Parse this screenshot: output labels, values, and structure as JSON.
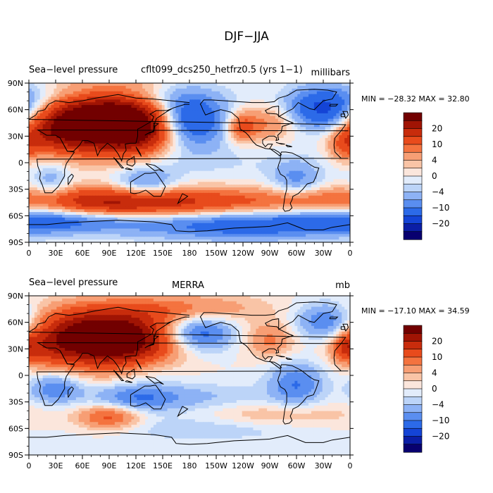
{
  "figure_title": "DJF−JJA",
  "colorbar": {
    "tick_labels": [
      "20",
      "10",
      "4",
      "0",
      "−4",
      "−10",
      "−20"
    ],
    "levels": [
      -25,
      -20,
      -15,
      -10,
      -7,
      -4,
      -2,
      0,
      2,
      4,
      7,
      10,
      15,
      20,
      25
    ],
    "colors": [
      "#08006f",
      "#0b1ea6",
      "#1444d6",
      "#2c6ae8",
      "#5a8ef0",
      "#8db2f5",
      "#bcd4f8",
      "#e2ecfb",
      "#fbe6dc",
      "#f9c4a6",
      "#f79e74",
      "#f4733f",
      "#e84b1c",
      "#c82c0c",
      "#a01404",
      "#720000"
    ]
  },
  "chart_data": [
    {
      "type": "heatmap",
      "panel_label": "Sea−level pressure",
      "title": "cflt099_dcs250_hetfrz0.5 (yrs 1−1)",
      "units": "millibars",
      "stats": "MIN = −28.32  MAX =  32.80",
      "min": -28.32,
      "max": 32.8,
      "x_ticks": [
        "0",
        "30E",
        "60E",
        "90E",
        "120E",
        "150E",
        "180",
        "150W",
        "120W",
        "90W",
        "60W",
        "30W",
        "0"
      ],
      "y_ticks": [
        "90N",
        "60N",
        "30N",
        "0",
        "30S",
        "60S",
        "90S"
      ],
      "xlim": [
        0,
        360
      ],
      "ylim": [
        -90,
        90
      ],
      "field": [
        {
          "lon": 100,
          "lat": 45,
          "value": 30,
          "rlon": 45,
          "rlat": 25
        },
        {
          "lon": 65,
          "lat": 50,
          "value": 14,
          "rlon": 55,
          "rlat": 22
        },
        {
          "lon": 25,
          "lat": 35,
          "value": 12,
          "rlon": 28,
          "rlat": 18
        },
        {
          "lon": 130,
          "lat": 35,
          "value": 10,
          "rlon": 25,
          "rlat": 15
        },
        {
          "lon": 175,
          "lat": 48,
          "value": -22,
          "rlon": 32,
          "rlat": 22
        },
        {
          "lon": 335,
          "lat": 60,
          "value": -20,
          "rlon": 32,
          "rlat": 18
        },
        {
          "lon": 270,
          "lat": 45,
          "value": 8,
          "rlon": 22,
          "rlat": 14
        },
        {
          "lon": 238,
          "lat": 40,
          "value": 12,
          "rlon": 12,
          "rlat": 12
        },
        {
          "lon": 355,
          "lat": 20,
          "value": 8,
          "rlon": 12,
          "rlat": 12
        },
        {
          "lon": 90,
          "lat": -45,
          "value": 18,
          "rlon": 60,
          "rlat": 12
        },
        {
          "lon": 200,
          "lat": -45,
          "value": 12,
          "rlon": 80,
          "rlat": 12
        },
        {
          "lon": 320,
          "lat": -42,
          "value": 6,
          "rlon": 40,
          "rlat": 10
        },
        {
          "lon": 40,
          "lat": -65,
          "value": -12,
          "rlon": 60,
          "rlat": 10
        },
        {
          "lon": 240,
          "lat": -70,
          "value": -14,
          "rlon": 90,
          "rlat": 12
        },
        {
          "lon": 130,
          "lat": -25,
          "value": -10,
          "rlon": 25,
          "rlat": 14
        },
        {
          "lon": 300,
          "lat": -20,
          "value": -8,
          "rlon": 20,
          "rlat": 16
        },
        {
          "lon": 25,
          "lat": -20,
          "value": -6,
          "rlon": 15,
          "rlat": 15
        },
        {
          "lon": 90,
          "lat": 75,
          "value": -6,
          "rlon": 60,
          "rlat": 10
        },
        {
          "lon": 200,
          "lat": 0,
          "value": -2,
          "rlon": 90,
          "rlat": 15
        }
      ]
    },
    {
      "type": "heatmap",
      "panel_label": "Sea−level pressure",
      "title": "MERRA",
      "units": "mb",
      "stats": "MIN = −17.10  MAX =  34.59",
      "min": -17.1,
      "max": 34.59,
      "x_ticks": [
        "0",
        "30E",
        "60E",
        "90E",
        "120E",
        "150E",
        "180",
        "150W",
        "120W",
        "90W",
        "60W",
        "30W",
        "0"
      ],
      "y_ticks": [
        "90N",
        "60N",
        "30N",
        "0",
        "30S",
        "60S",
        "90S"
      ],
      "xlim": [
        0,
        360
      ],
      "ylim": [
        -90,
        90
      ],
      "field": [
        {
          "lon": 100,
          "lat": 38,
          "value": 30,
          "rlon": 45,
          "rlat": 22
        },
        {
          "lon": 55,
          "lat": 50,
          "value": 14,
          "rlon": 45,
          "rlat": 20
        },
        {
          "lon": 20,
          "lat": 30,
          "value": 8,
          "rlon": 25,
          "rlat": 15
        },
        {
          "lon": 175,
          "lat": 75,
          "value": 8,
          "rlon": 60,
          "rlat": 12
        },
        {
          "lon": 190,
          "lat": 48,
          "value": -14,
          "rlon": 28,
          "rlat": 15
        },
        {
          "lon": 335,
          "lat": 60,
          "value": -12,
          "rlon": 25,
          "rlat": 15
        },
        {
          "lon": 270,
          "lat": 40,
          "value": 8,
          "rlon": 20,
          "rlat": 14
        },
        {
          "lon": 355,
          "lat": 32,
          "value": 10,
          "rlon": 10,
          "rlat": 10
        },
        {
          "lon": 90,
          "lat": -47,
          "value": 12,
          "rlon": 25,
          "rlat": 10
        },
        {
          "lon": 280,
          "lat": -45,
          "value": 5,
          "rlon": 60,
          "rlat": 10
        },
        {
          "lon": 120,
          "lat": -25,
          "value": -10,
          "rlon": 35,
          "rlat": 12
        },
        {
          "lon": 30,
          "lat": -15,
          "value": -10,
          "rlon": 20,
          "rlat": 12
        },
        {
          "lon": 300,
          "lat": -10,
          "value": -10,
          "rlon": 22,
          "rlat": 18
        },
        {
          "lon": 200,
          "lat": -60,
          "value": -4,
          "rlon": 80,
          "rlat": 10
        },
        {
          "lon": 200,
          "lat": -25,
          "value": -4,
          "rlon": 50,
          "rlat": 12
        },
        {
          "lon": 130,
          "lat": 10,
          "value": -4,
          "rlon": 30,
          "rlat": 12
        }
      ]
    }
  ]
}
